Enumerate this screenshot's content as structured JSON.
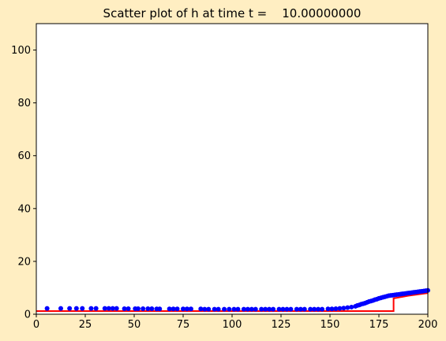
{
  "chart_data": {
    "type": "scatter",
    "title": "Scatter plot of h at time t =    10.00000000",
    "xlabel": "",
    "ylabel": "",
    "xlim": [
      0,
      200
    ],
    "ylim": [
      0,
      110
    ],
    "x_ticks": [
      0,
      25,
      50,
      75,
      100,
      125,
      150,
      175,
      200
    ],
    "y_ticks": [
      0,
      20,
      40,
      60,
      80,
      100
    ],
    "grid": false,
    "colors": {
      "figure_background": "#ffeec2",
      "plot_background": "#ffffff",
      "scatter": "#0000ff",
      "line": "#ff0000"
    },
    "series": [
      {
        "kind": "scatter",
        "points": [
          [
            5.5,
            2.2
          ],
          [
            12.5,
            2.2
          ],
          [
            17,
            2.2
          ],
          [
            20.5,
            2.2
          ],
          [
            23.5,
            2.2
          ],
          [
            28,
            2.2
          ],
          [
            30.5,
            2.2
          ],
          [
            35,
            2.2
          ],
          [
            37,
            2.2
          ],
          [
            39,
            2.2
          ],
          [
            41,
            2.2
          ],
          [
            45,
            2.1
          ],
          [
            47,
            2.1
          ],
          [
            50.5,
            2.1
          ],
          [
            52,
            2.1
          ],
          [
            54.5,
            2.1
          ],
          [
            57,
            2.1
          ],
          [
            59,
            2.1
          ],
          [
            61.5,
            2.0
          ],
          [
            63,
            2.0
          ],
          [
            68,
            2.0
          ],
          [
            70,
            2.0
          ],
          [
            72,
            2.0
          ],
          [
            75,
            2.0
          ],
          [
            77,
            2.0
          ],
          [
            79,
            2.0
          ],
          [
            84,
            2.0
          ],
          [
            86,
            1.9
          ],
          [
            88,
            1.9
          ],
          [
            91,
            1.9
          ],
          [
            93,
            1.9
          ],
          [
            96,
            1.9
          ],
          [
            98.5,
            1.9
          ],
          [
            101,
            1.9
          ],
          [
            103,
            1.9
          ],
          [
            106,
            1.9
          ],
          [
            108,
            1.9
          ],
          [
            110,
            1.9
          ],
          [
            112,
            1.9
          ],
          [
            115,
            1.9
          ],
          [
            117,
            1.9
          ],
          [
            119,
            1.9
          ],
          [
            121,
            1.9
          ],
          [
            124,
            1.9
          ],
          [
            126,
            1.9
          ],
          [
            128,
            1.9
          ],
          [
            130,
            1.9
          ],
          [
            133,
            1.9
          ],
          [
            135,
            1.9
          ],
          [
            137,
            1.9
          ],
          [
            140,
            1.9
          ],
          [
            142,
            1.9
          ],
          [
            144,
            1.9
          ],
          [
            146,
            1.9
          ],
          [
            149,
            2.0
          ],
          [
            151,
            2.0
          ],
          [
            153,
            2.1
          ],
          [
            155,
            2.2
          ],
          [
            157,
            2.3
          ],
          [
            159,
            2.5
          ],
          [
            161,
            2.7
          ],
          [
            163,
            3.0
          ],
          [
            164,
            3.3
          ],
          [
            165,
            3.5
          ],
          [
            166,
            3.8
          ],
          [
            167,
            4.0
          ],
          [
            168,
            4.2
          ],
          [
            169,
            4.5
          ],
          [
            170,
            4.8
          ],
          [
            171,
            5.0
          ],
          [
            172,
            5.2
          ],
          [
            173,
            5.5
          ],
          [
            174,
            5.7
          ],
          [
            175,
            6.0
          ],
          [
            176,
            6.2
          ],
          [
            177,
            6.4
          ],
          [
            178,
            6.6
          ],
          [
            179,
            6.8
          ],
          [
            180,
            7.0
          ],
          [
            181,
            7.1
          ],
          [
            182,
            7.2
          ],
          [
            183,
            7.3
          ],
          [
            184,
            7.4
          ],
          [
            185,
            7.5
          ],
          [
            186,
            7.6
          ],
          [
            187,
            7.7
          ],
          [
            188,
            7.8
          ],
          [
            189,
            7.9
          ],
          [
            190,
            8.0
          ],
          [
            191,
            8.1
          ],
          [
            192,
            8.2
          ],
          [
            193,
            8.3
          ],
          [
            194,
            8.4
          ],
          [
            195,
            8.5
          ],
          [
            196,
            8.6
          ],
          [
            197,
            8.7
          ],
          [
            198,
            8.8
          ],
          [
            199,
            8.9
          ],
          [
            200,
            9.0
          ]
        ]
      },
      {
        "kind": "line",
        "points": [
          [
            0,
            1.2
          ],
          [
            182.5,
            1.2
          ],
          [
            182.5,
            6.0
          ],
          [
            190,
            7.0
          ],
          [
            200,
            8.0
          ]
        ]
      }
    ]
  }
}
